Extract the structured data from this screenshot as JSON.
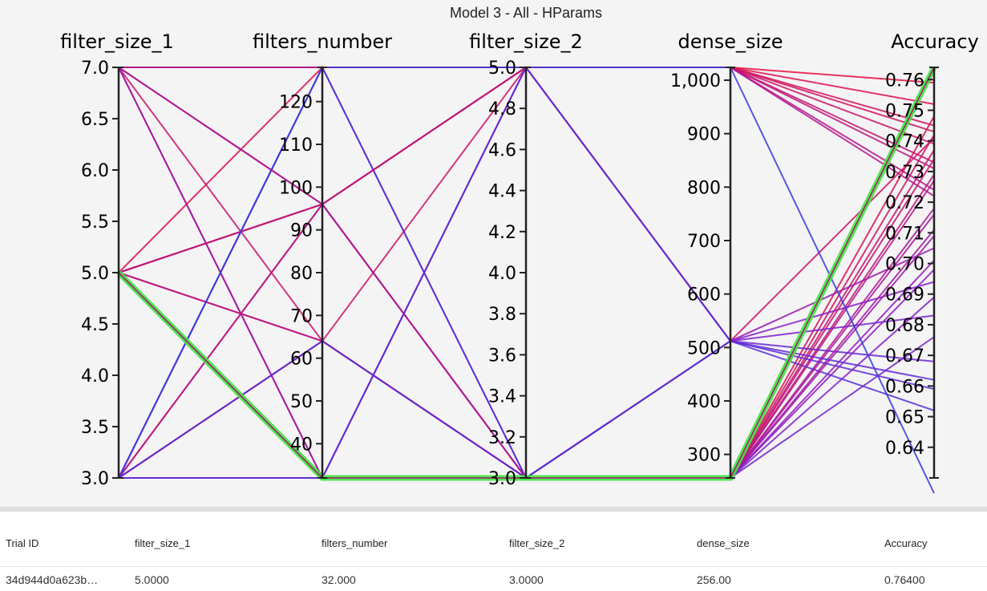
{
  "title": "Model 3 - All - HParams",
  "axes": [
    {
      "name": "filter_size_1",
      "ticks": [
        "7.0",
        "6.5",
        "6.0",
        "5.5",
        "5.0",
        "4.5",
        "4.0",
        "3.5",
        "3.0"
      ]
    },
    {
      "name": "filters_number",
      "ticks": [
        "120",
        "110",
        "100",
        "90",
        "80",
        "70",
        "60",
        "50",
        "40"
      ]
    },
    {
      "name": "filter_size_2",
      "ticks": [
        "5.0",
        "4.8",
        "4.6",
        "4.4",
        "4.2",
        "4.0",
        "3.8",
        "3.6",
        "3.4",
        "3.2",
        "3.0"
      ]
    },
    {
      "name": "dense_size",
      "ticks": [
        "1,000",
        "900",
        "800",
        "700",
        "600",
        "500",
        "400",
        "300"
      ]
    },
    {
      "name": "Accuracy",
      "ticks": [
        "0.76",
        "0.75",
        "0.74",
        "0.73",
        "0.72",
        "0.71",
        "0.70",
        "0.69",
        "0.68",
        "0.67",
        "0.66",
        "0.65",
        "0.64"
      ]
    }
  ],
  "chart_data": {
    "type": "parallel_coordinates",
    "title": "Model 3 - All - HParams",
    "dimensions": [
      {
        "name": "filter_size_1",
        "range": [
          3.0,
          7.0
        ]
      },
      {
        "name": "filters_number",
        "range": [
          32,
          128
        ]
      },
      {
        "name": "filter_size_2",
        "range": [
          3.0,
          5.0
        ]
      },
      {
        "name": "dense_size",
        "range": [
          256,
          1024
        ]
      },
      {
        "name": "Accuracy",
        "range": [
          0.63,
          0.764
        ]
      }
    ],
    "highlight_color": "#3ee63e",
    "color_scale": [
      "#3b3bdd",
      "#8a1bc8",
      "#e8103c"
    ],
    "trials": [
      [
        5,
        32,
        3,
        256,
        0.764
      ],
      [
        7,
        128,
        5,
        1024,
        0.759
      ],
      [
        7,
        128,
        5,
        1024,
        0.745
      ],
      [
        7,
        128,
        5,
        1024,
        0.733
      ],
      [
        7,
        128,
        5,
        1024,
        0.722
      ],
      [
        7,
        96,
        5,
        512,
        0.741
      ],
      [
        7,
        64,
        3,
        256,
        0.737
      ],
      [
        7,
        32,
        3,
        256,
        0.748
      ],
      [
        7,
        32,
        3,
        512,
        0.705
      ],
      [
        5,
        128,
        5,
        1024,
        0.752
      ],
      [
        5,
        96,
        3,
        256,
        0.742
      ],
      [
        5,
        96,
        3,
        256,
        0.729
      ],
      [
        5,
        64,
        5,
        1024,
        0.739
      ],
      [
        5,
        64,
        3,
        256,
        0.727
      ],
      [
        5,
        32,
        3,
        256,
        0.718
      ],
      [
        5,
        32,
        3,
        256,
        0.701
      ],
      [
        5,
        32,
        5,
        512,
        0.694
      ],
      [
        3,
        128,
        3,
        512,
        0.668
      ],
      [
        3,
        128,
        3,
        512,
        0.652
      ],
      [
        3,
        96,
        5,
        1024,
        0.743
      ],
      [
        3,
        96,
        5,
        1024,
        0.724
      ],
      [
        3,
        64,
        3,
        256,
        0.734
      ],
      [
        3,
        64,
        3,
        256,
        0.709
      ],
      [
        3,
        32,
        3,
        256,
        0.711
      ],
      [
        3,
        32,
        3,
        256,
        0.698
      ],
      [
        3,
        32,
        5,
        512,
        0.683
      ],
      [
        3,
        32,
        3,
        256,
        0.689
      ],
      [
        3,
        32,
        3,
        256,
        0.676
      ],
      [
        3,
        64,
        3,
        512,
        0.659
      ],
      [
        7,
        96,
        3,
        256,
        0.716
      ],
      [
        5,
        96,
        5,
        1024,
        0.731
      ],
      [
        3,
        128,
        5,
        1024,
        0.625
      ],
      [
        3,
        32,
        5,
        512,
        0.662
      ]
    ]
  },
  "table": {
    "headers": [
      "Trial ID",
      "filter_size_1",
      "filters_number",
      "filter_size_2",
      "dense_size",
      "Accuracy"
    ],
    "row": [
      "34d944d0a623b…",
      "5.0000",
      "32.000",
      "3.0000",
      "256.00",
      "0.76400"
    ]
  }
}
